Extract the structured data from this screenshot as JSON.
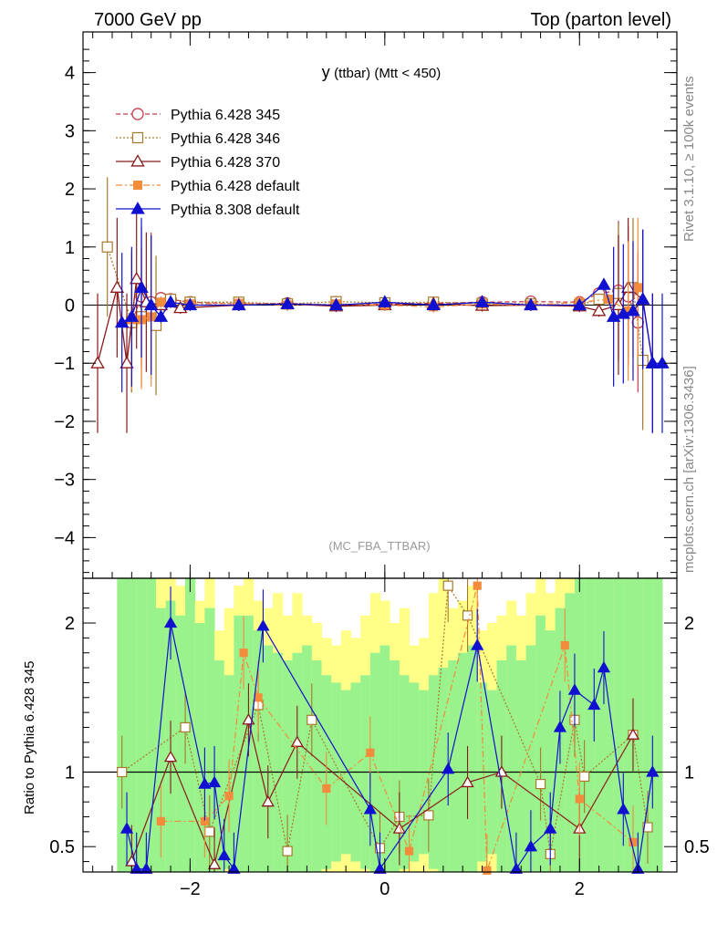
{
  "header": {
    "left": "7000 GeV pp",
    "right": "Top (parton level)"
  },
  "side_labels": {
    "rivet": "Rivet 3.1.10, ≥ 100k events",
    "mcplots": "mcplots.cern.ch [arXiv:1306.3436]"
  },
  "colors": {
    "p345": "#c33a4a",
    "p346": "#a8792c",
    "p370": "#8b1a1a",
    "p6def": "#f28c3c",
    "p8def": "#1010d0",
    "band_green": "#99f28c",
    "band_yellow": "#ffff88"
  },
  "chart_data": [
    {
      "type": "scatter",
      "title": "y (ttbar) (Mtt < 450)",
      "title_main": "y",
      "title_sub": "(ttbar) (Mtt < 450)",
      "watermark": "(MC_FBA_TTBAR)",
      "xlim": [
        -3.1,
        3.0
      ],
      "ylim": [
        -4.7,
        4.7
      ],
      "x_ticks": [
        -2,
        0,
        2
      ],
      "y_ticks": [
        -4,
        -3,
        -2,
        -1,
        0,
        1,
        2,
        3,
        4
      ],
      "y_tick_labels": [
        "−4",
        "−3",
        "−2",
        "−1",
        "0",
        "1",
        "2",
        "3",
        "4"
      ],
      "legend_position": "top-left",
      "series": [
        {
          "name": "Pythia 6.428 345",
          "marker": "open-circle",
          "line": "dashed",
          "x": [
            -2.6,
            -2.5,
            -2.4,
            -2.3,
            -2.2,
            -2.0,
            -1.5,
            -1.0,
            -0.5,
            0.0,
            0.5,
            1.0,
            1.5,
            2.0,
            2.2,
            2.4,
            2.5,
            2.6
          ],
          "y": [
            -0.3,
            0.15,
            0.05,
            0.12,
            0.1,
            0.05,
            0.02,
            0.03,
            0.0,
            0.02,
            0.03,
            0.05,
            0.06,
            0.05,
            0.2,
            0.25,
            0.15,
            -0.3
          ]
        },
        {
          "name": "Pythia 6.428 346",
          "marker": "open-square",
          "line": "dotted",
          "x": [
            -2.85,
            -2.6,
            -2.5,
            -2.35,
            -2.2,
            -2.0,
            -1.5,
            -1.0,
            -0.5,
            0.0,
            0.5,
            1.0,
            1.5,
            2.0,
            2.2,
            2.4,
            2.55,
            2.65
          ],
          "y": [
            1.0,
            -0.3,
            -0.2,
            -0.35,
            0.1,
            0.05,
            0.05,
            0.02,
            0.06,
            0.04,
            0.05,
            0.03,
            0.02,
            0.0,
            0.1,
            0.2,
            0.3,
            -0.95
          ]
        },
        {
          "name": "Pythia 6.428 370",
          "marker": "open-triangle",
          "line": "solid",
          "x": [
            -2.95,
            -2.75,
            -2.65,
            -2.55,
            -2.45,
            -2.3,
            -2.1,
            -1.5,
            -1.0,
            -0.5,
            0.0,
            0.5,
            1.0,
            1.5,
            2.0,
            2.2,
            2.4,
            2.5,
            2.65,
            2.75
          ],
          "y": [
            -1.0,
            0.3,
            -1.0,
            0.45,
            0.05,
            0.0,
            -0.05,
            0.0,
            0.02,
            -0.02,
            0.0,
            0.02,
            -0.01,
            0.0,
            -0.02,
            -0.1,
            0.0,
            0.3,
            0.1,
            -1.0
          ]
        },
        {
          "name": "Pythia 6.428 default",
          "marker": "filled-square",
          "line": "dashdot",
          "x": [
            -2.6,
            -2.5,
            -2.4,
            -2.3,
            -2.0,
            -1.5,
            -1.0,
            -0.5,
            0.0,
            0.5,
            1.0,
            1.5,
            2.0,
            2.3,
            2.5,
            2.6
          ],
          "y": [
            -0.25,
            -0.25,
            -0.2,
            0.05,
            0.02,
            0.03,
            0.0,
            0.02,
            0.0,
            -0.03,
            0.02,
            0.0,
            0.05,
            0.1,
            -0.1,
            0.3
          ]
        },
        {
          "name": "Pythia 8.308 default",
          "marker": "filled-triangle",
          "line": "solid",
          "x": [
            -2.7,
            -2.6,
            -2.5,
            -2.4,
            -2.3,
            -2.2,
            -2.0,
            -1.5,
            -1.0,
            -0.5,
            0.0,
            0.5,
            1.0,
            1.5,
            2.0,
            2.25,
            2.35,
            2.45,
            2.55,
            2.65,
            2.75,
            2.85
          ],
          "y": [
            -0.3,
            -0.2,
            0.3,
            0.0,
            -0.2,
            0.05,
            0.0,
            0.0,
            0.02,
            0.0,
            0.05,
            0.0,
            0.05,
            0.0,
            0.0,
            0.35,
            -0.2,
            -0.15,
            -0.1,
            0.1,
            -1.0,
            -1.0
          ]
        }
      ]
    },
    {
      "type": "scatter",
      "ylabel": "Ratio to Pythia 6.428 345",
      "xlim": [
        -3.1,
        3.0
      ],
      "ylim": [
        0.33,
        2.3
      ],
      "y_ticks": [
        0.5,
        1,
        2
      ],
      "x_ticks": [
        -2,
        0,
        2
      ],
      "x_tick_labels": [
        "−2",
        "0",
        "2"
      ],
      "reference_line": 1,
      "series": [
        {
          "name": "Pythia 6.428 346",
          "x": [
            -2.7,
            -2.05,
            -1.8,
            -1.3,
            -1.0,
            -0.75,
            -0.05,
            0.15,
            0.45,
            0.65,
            0.85,
            1.6,
            1.7,
            1.95,
            2.05,
            2.55,
            2.7
          ],
          "y": [
            1.0,
            1.3,
            0.6,
            1.45,
            0.47,
            1.35,
            0.49,
            0.7,
            0.71,
            2.25,
            2.05,
            0.92,
            0.45,
            1.35,
            0.97,
            1.25,
            0.63
          ]
        },
        {
          "name": "Pythia 6.428 370",
          "x": [
            -2.6,
            -2.2,
            -1.75,
            -1.4,
            -1.2,
            -0.9,
            0.15,
            0.85,
            1.2,
            2.0,
            2.55
          ],
          "y": [
            0.4,
            1.1,
            0.38,
            1.35,
            0.8,
            1.2,
            0.62,
            0.93,
            1.0,
            0.62,
            1.25
          ]
        },
        {
          "name": "Pythia 6.428 default",
          "x": [
            -2.3,
            -1.85,
            -1.6,
            -1.45,
            -1.3,
            -0.6,
            -0.15,
            0.25,
            0.95,
            1.05,
            1.85,
            2.0,
            2.55
          ],
          "y": [
            0.67,
            0.67,
            0.84,
            1.8,
            1.5,
            0.89,
            1.13,
            0.47,
            2.25,
            0.34,
            1.85,
            0.82,
            0.53
          ]
        },
        {
          "name": "Pythia 8.308 default",
          "x": [
            -2.65,
            -2.55,
            -2.45,
            -2.2,
            -1.85,
            -1.75,
            -1.65,
            -1.55,
            -1.25,
            -0.15,
            -0.05,
            0.65,
            0.95,
            1.35,
            1.5,
            1.7,
            1.8,
            1.95,
            2.15,
            2.25,
            2.45,
            2.6,
            2.75
          ],
          "y": [
            0.62,
            0.35,
            0.35,
            2.0,
            0.92,
            0.93,
            0.44,
            0.35,
            1.98,
            0.75,
            0.35,
            1.02,
            1.85,
            0.35,
            0.5,
            0.62,
            1.3,
            1.55,
            1.45,
            1.7,
            0.75,
            0.35,
            1.0
          ]
        }
      ],
      "bands": [
        {
          "x0": -2.75,
          "x1": -2.65,
          "green": 2.3,
          "yellow": 2.3
        },
        {
          "x0": -2.65,
          "x1": -2.55,
          "green": 2.3,
          "yellow": 2.3
        },
        {
          "x0": -2.55,
          "x1": -2.45,
          "green": 2.3,
          "yellow": 2.3
        },
        {
          "x0": -2.45,
          "x1": -2.35,
          "green": 2.3,
          "yellow": 2.3
        },
        {
          "x0": -2.35,
          "x1": -2.25,
          "green": 2.1,
          "yellow": 2.3
        },
        {
          "x0": -2.25,
          "x1": -2.15,
          "green": 2.15,
          "yellow": 2.3
        },
        {
          "x0": -2.15,
          "x1": -2.05,
          "green": 2.05,
          "yellow": 2.25
        },
        {
          "x0": -2.05,
          "x1": -1.95,
          "green": 2.3,
          "yellow": 2.3
        },
        {
          "x0": -1.95,
          "x1": -1.85,
          "green": 2.0,
          "yellow": 2.15
        },
        {
          "x0": -1.85,
          "x1": -1.75,
          "green": 2.1,
          "yellow": 2.3
        },
        {
          "x0": -1.75,
          "x1": -1.65,
          "green": 1.75,
          "yellow": 1.95
        },
        {
          "x0": -1.65,
          "x1": -1.55,
          "green": 1.65,
          "yellow": 2.1
        },
        {
          "x0": -1.55,
          "x1": -1.45,
          "green": 2.05,
          "yellow": 2.25
        },
        {
          "x0": -1.45,
          "x1": -1.35,
          "green": 2.05,
          "yellow": 2.3
        },
        {
          "x0": -1.35,
          "x1": -1.25,
          "green": 1.95,
          "yellow": 2.15
        },
        {
          "x0": -1.25,
          "x1": -1.15,
          "green": 1.85,
          "yellow": 2.1
        },
        {
          "x0": -1.15,
          "x1": -1.05,
          "green": 1.8,
          "yellow": 2.2
        },
        {
          "x0": -1.05,
          "x1": -0.95,
          "green": 1.75,
          "yellow": 2.05
        },
        {
          "x0": -0.95,
          "x1": -0.85,
          "green": 1.8,
          "yellow": 2.2
        },
        {
          "x0": -0.85,
          "x1": -0.75,
          "green": 1.85,
          "yellow": 2.05
        },
        {
          "x0": -0.75,
          "x1": -0.65,
          "green": 1.75,
          "yellow": 2.0
        },
        {
          "x0": -0.65,
          "x1": -0.55,
          "green": 1.65,
          "yellow": 1.9
        },
        {
          "x0": -0.55,
          "x1": -0.45,
          "green": 1.6,
          "yellow": 1.85
        },
        {
          "x0": -0.45,
          "x1": -0.35,
          "green": 1.55,
          "yellow": 1.95
        },
        {
          "x0": -0.35,
          "x1": -0.25,
          "green": 1.6,
          "yellow": 1.9
        },
        {
          "x0": -0.25,
          "x1": -0.15,
          "green": 1.65,
          "yellow": 2.05
        },
        {
          "x0": -0.15,
          "x1": -0.05,
          "green": 1.8,
          "yellow": 2.2
        },
        {
          "x0": -0.05,
          "x1": 0.05,
          "green": 1.85,
          "yellow": 2.15
        },
        {
          "x0": 0.05,
          "x1": 0.15,
          "green": 1.75,
          "yellow": 2.0
        },
        {
          "x0": 0.15,
          "x1": 0.25,
          "green": 1.65,
          "yellow": 2.1
        },
        {
          "x0": 0.25,
          "x1": 0.35,
          "green": 1.6,
          "yellow": 1.85
        },
        {
          "x0": 0.35,
          "x1": 0.45,
          "green": 1.55,
          "yellow": 1.9
        },
        {
          "x0": 0.45,
          "x1": 0.55,
          "green": 1.65,
          "yellow": 2.2
        },
        {
          "x0": 0.55,
          "x1": 0.65,
          "green": 1.7,
          "yellow": 2.3
        },
        {
          "x0": 0.65,
          "x1": 0.75,
          "green": 1.75,
          "yellow": 2.1
        },
        {
          "x0": 0.75,
          "x1": 0.85,
          "green": 1.8,
          "yellow": 2.15
        },
        {
          "x0": 0.85,
          "x1": 0.95,
          "green": 1.85,
          "yellow": 2.25
        },
        {
          "x0": 0.95,
          "x1": 1.05,
          "green": 1.6,
          "yellow": 1.95
        },
        {
          "x0": 1.05,
          "x1": 1.15,
          "green": 1.55,
          "yellow": 2.0
        },
        {
          "x0": 1.15,
          "x1": 1.25,
          "green": 1.75,
          "yellow": 2.05
        },
        {
          "x0": 1.25,
          "x1": 1.35,
          "green": 1.85,
          "yellow": 2.15
        },
        {
          "x0": 1.35,
          "x1": 1.45,
          "green": 1.75,
          "yellow": 2.05
        },
        {
          "x0": 1.45,
          "x1": 1.55,
          "green": 1.85,
          "yellow": 2.2
        },
        {
          "x0": 1.55,
          "x1": 1.65,
          "green": 2.05,
          "yellow": 2.3
        },
        {
          "x0": 1.65,
          "x1": 1.75,
          "green": 1.95,
          "yellow": 2.2
        },
        {
          "x0": 1.75,
          "x1": 1.85,
          "green": 2.1,
          "yellow": 2.3
        },
        {
          "x0": 1.85,
          "x1": 1.95,
          "green": 2.2,
          "yellow": 2.3
        },
        {
          "x0": 1.95,
          "x1": 2.05,
          "green": 2.3,
          "yellow": 2.3
        },
        {
          "x0": 2.05,
          "x1": 2.15,
          "green": 2.3,
          "yellow": 2.3
        },
        {
          "x0": 2.15,
          "x1": 2.25,
          "green": 2.3,
          "yellow": 2.3
        },
        {
          "x0": 2.25,
          "x1": 2.35,
          "green": 2.3,
          "yellow": 2.3
        },
        {
          "x0": 2.35,
          "x1": 2.45,
          "green": 2.3,
          "yellow": 2.3
        },
        {
          "x0": 2.45,
          "x1": 2.55,
          "green": 2.3,
          "yellow": 2.3
        },
        {
          "x0": 2.55,
          "x1": 2.65,
          "green": 2.3,
          "yellow": 2.3
        },
        {
          "x0": 2.65,
          "x1": 2.75,
          "green": 2.3,
          "yellow": 2.3
        },
        {
          "x0": 2.75,
          "x1": 2.85,
          "green": 2.3,
          "yellow": 2.3
        }
      ]
    }
  ]
}
